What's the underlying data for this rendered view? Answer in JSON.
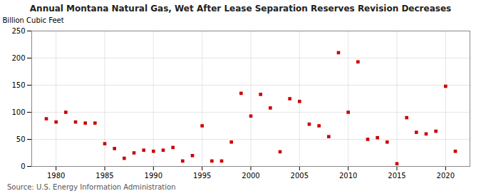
{
  "chart_data": {
    "type": "scatter",
    "title": "Annual Montana Natural Gas, Wet After Lease Separation Reserves Revision Decreases",
    "ylabel": "Billion Cubic Feet",
    "source": "Source: U.S. Energy Information Administration",
    "x": [
      1979,
      1980,
      1981,
      1982,
      1983,
      1984,
      1985,
      1986,
      1987,
      1988,
      1989,
      1990,
      1991,
      1992,
      1993,
      1994,
      1995,
      1996,
      1997,
      1998,
      1999,
      2000,
      2001,
      2002,
      2003,
      2004,
      2005,
      2006,
      2007,
      2008,
      2009,
      2010,
      2011,
      2012,
      2013,
      2014,
      2015,
      2016,
      2017,
      2018,
      2019,
      2020,
      2021
    ],
    "values": [
      88,
      82,
      100,
      82,
      80,
      80,
      42,
      33,
      15,
      25,
      30,
      28,
      30,
      35,
      10,
      20,
      75,
      10,
      10,
      45,
      135,
      93,
      133,
      108,
      27,
      125,
      120,
      78,
      75,
      55,
      210,
      100,
      193,
      50,
      53,
      45,
      5,
      90,
      63,
      60,
      65,
      148,
      28
    ],
    "color": "#cc0000",
    "marker": "square",
    "xlim": [
      1977.5,
      2022.5
    ],
    "xticks": [
      1980,
      1985,
      1990,
      1995,
      2000,
      2005,
      2010,
      2015,
      2020
    ],
    "ylim": [
      0,
      250
    ],
    "yticks": [
      0,
      50,
      100,
      150,
      200,
      250
    ],
    "grid": true
  }
}
